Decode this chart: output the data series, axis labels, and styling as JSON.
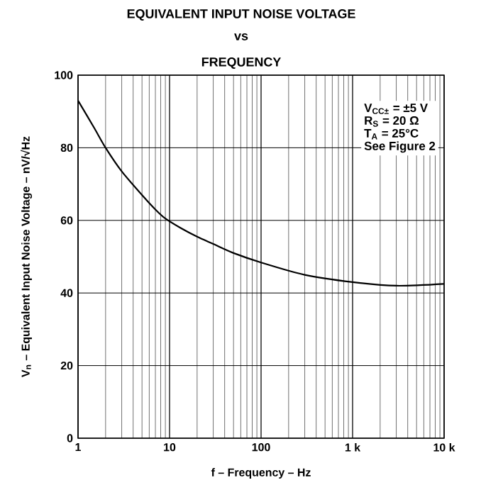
{
  "chart_data": {
    "type": "line",
    "title": "EQUIVALENT INPUT NOISE VOLTAGE",
    "subtitle": "vs FREQUENCY",
    "xlabel": "f – Frequency – Hz",
    "ylabel": "V$_{n}$ – Equivalent Input Noise Voltage – nV/√Hz",
    "annotations": [
      "V$_{CC±}$ = ±5 V",
      "R$_{S}$ = 20 Ω",
      "T$_{A}$ = 25°C",
      "See Figure 2"
    ],
    "x": [
      1,
      1.5,
      2,
      3,
      5,
      7,
      9,
      13,
      20,
      30,
      50,
      100,
      300,
      1000,
      3000,
      10000
    ],
    "series": [
      {
        "color": "#000000",
        "values": [
          93,
          85.5,
          80,
          73.5,
          67,
          63,
          60.5,
          58,
          55.5,
          53.5,
          51,
          48.4,
          45,
          43,
          42,
          42.5
        ]
      }
    ],
    "xlim": [
      1,
      10000
    ],
    "ylim": [
      0,
      100
    ],
    "xticks": [
      1,
      10,
      100,
      {
        "value": 1000,
        "label": "1 k"
      },
      {
        "value": 10000,
        "label": "10 k"
      }
    ],
    "yticks": [
      0,
      20,
      40,
      60,
      80,
      100
    ],
    "log": "x",
    "grid": true,
    "marker": "none",
    "line_style": "solid"
  }
}
